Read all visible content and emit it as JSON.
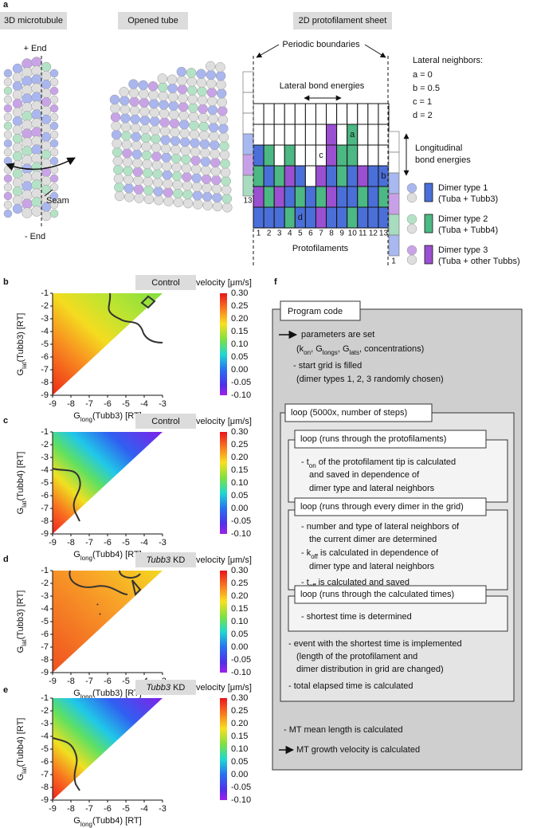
{
  "panel_labels": [
    "a",
    "b",
    "c",
    "d",
    "e",
    "f"
  ],
  "panel_a": {
    "headers": [
      "3D microtubule",
      "Opened tube",
      "2D protofilament sheet"
    ],
    "plus_end": "+ End",
    "minus_end": "- End",
    "seam": "Seam",
    "periodic_boundaries": "Periodic boundaries",
    "lateral_bond_energies": "Lateral bond energies",
    "lateral_neighbors": {
      "title": "Lateral neighbors:",
      "items": [
        "a = 0",
        "b = 0.5",
        "c = 1",
        "d = 2"
      ]
    },
    "longitudinal": [
      "Longitudinal",
      "bond energies"
    ],
    "grid_letters": [
      "a",
      "b",
      "c",
      "d"
    ],
    "protofilament_numbers": [
      "1",
      "2",
      "3",
      "4",
      "5",
      "6",
      "7",
      "8",
      "9",
      "10",
      "11",
      "12",
      "13"
    ],
    "left_column_label": "13",
    "right_column_label": "1",
    "protofilaments": "Protofilaments",
    "legend": [
      {
        "name": "Dimer type 1",
        "detail": "(Tuba + Tubb3)"
      },
      {
        "name": "Dimer type 2",
        "detail": "(Tuba + Tubb4)"
      },
      {
        "name": "Dimer type 3",
        "detail": "(Tuba + other Tubbs)"
      }
    ]
  },
  "heatmaps": [
    {
      "title": [
        {
          "text": "Control"
        }
      ],
      "colorbar_title": "velocity [μm/s]",
      "colorbar_ticks": [
        "0.30",
        "0.25",
        "0.20",
        "0.15",
        "0.10",
        "0.05",
        "0.00",
        "-0.05",
        "-0.10"
      ],
      "y_label": [
        "G",
        "lat",
        "(Tubb3) [RT]"
      ],
      "x_label": [
        "G",
        "long",
        "(Tubb3) [RT]"
      ],
      "y_ticks": [
        "-1",
        "-2",
        "-3",
        "-4",
        "-5",
        "-6",
        "-7",
        "-8",
        "-9"
      ],
      "x_ticks": [
        "-9",
        "-8",
        "-7",
        "-6",
        "-5",
        "-4",
        "-3"
      ]
    },
    {
      "title": [
        {
          "text": "Control"
        }
      ],
      "colorbar_title": "velocity [μm/s]",
      "colorbar_ticks": [
        "0.30",
        "0.25",
        "0.20",
        "0.15",
        "0.10",
        "0.05",
        "0.00",
        "-0.05",
        "-0.10"
      ],
      "y_label": [
        "G",
        "lat",
        "(Tubb4) [RT]"
      ],
      "x_label": [
        "G",
        "long",
        "(Tubb4) [RT]"
      ],
      "y_ticks": [
        "-1",
        "-2",
        "-3",
        "-4",
        "-5",
        "-6",
        "-7",
        "-8",
        "-9"
      ],
      "x_ticks": [
        "-9",
        "-8",
        "-7",
        "-6",
        "-5",
        "-4",
        "-3"
      ]
    },
    {
      "title": [
        {
          "text": "Tubb3",
          "italic": true
        },
        {
          "text": " KD"
        }
      ],
      "colorbar_title": "velocity [μm/s]",
      "colorbar_ticks": [
        "0.30",
        "0.25",
        "0.20",
        "0.15",
        "0.10",
        "0.05",
        "0.00",
        "-0.05",
        "-0.10"
      ],
      "y_label": [
        "G",
        "lat",
        "(Tubb3) [RT]"
      ],
      "x_label": [
        "G",
        "long",
        "(Tubb3) [RT]"
      ],
      "y_ticks": [
        "-1",
        "-2",
        "-3",
        "-4",
        "-5",
        "-6",
        "-7",
        "-8",
        "-9"
      ],
      "x_ticks": [
        "-9",
        "-8",
        "-7",
        "-6",
        "-5",
        "-4",
        "-3"
      ]
    },
    {
      "title": [
        {
          "text": "Tubb3",
          "italic": true
        },
        {
          "text": " KD"
        }
      ],
      "colorbar_title": "velocity [μm/s]",
      "colorbar_ticks": [
        "0.30",
        "0.25",
        "0.20",
        "0.15",
        "0.10",
        "0.05",
        "0.00",
        "-0.05",
        "-0.10"
      ],
      "y_label": [
        "G",
        "lat",
        "(Tubb4) [RT]"
      ],
      "x_label": [
        "G",
        "long",
        "(Tubb4) [RT]"
      ],
      "y_ticks": [
        "-1",
        "-2",
        "-3",
        "-4",
        "-5",
        "-6",
        "-7",
        "-8",
        "-9"
      ],
      "x_ticks": [
        "-9",
        "-8",
        "-7",
        "-6",
        "-5",
        "-4",
        "-3"
      ]
    }
  ],
  "panel_f": {
    "title": "Program code",
    "pre": [
      [
        "parameters are set"
      ],
      [
        "(k",
        "on",
        ", G",
        "longs",
        ", G",
        "lats",
        ", concentrations)"
      ],
      [
        "- start grid is filled"
      ],
      [
        "(dimer types 1, 2, 3 randomly chosen)"
      ]
    ],
    "loop": {
      "header": "loop (5000x, number of steps)",
      "subloops": [
        {
          "header": "loop (runs through the protofilaments)",
          "lines": [
            [
              "- t",
              "on",
              " of the protofilament tip is calculated"
            ],
            [
              "and saved in dependence of"
            ],
            [
              "dimer type and lateral neighbors"
            ]
          ]
        },
        {
          "header": "loop (runs through every dimer in the grid)",
          "lines": [
            [
              "- number and type of lateral neighbors of"
            ],
            [
              "the current dimer are determined"
            ],
            [
              "- k",
              "off",
              " is calculated in dependence of"
            ],
            [
              "dimer type and lateral neighbors"
            ],
            [
              "- t",
              "off",
              " is calculated and saved"
            ]
          ]
        },
        {
          "header": "loop (runs through the calculated times)",
          "lines": [
            [
              "- shortest time is determined"
            ]
          ]
        }
      ],
      "after": [
        [
          "- event with the shortest time is implemented"
        ],
        [
          "(length of the protofilament and"
        ],
        [
          "dimer distribution in grid are changed)"
        ],
        [
          "- total elapsed time is calculated"
        ]
      ]
    },
    "post": [
      [
        "- MT mean length is calculated"
      ],
      [
        "MT growth velocity is calculated"
      ]
    ]
  }
}
